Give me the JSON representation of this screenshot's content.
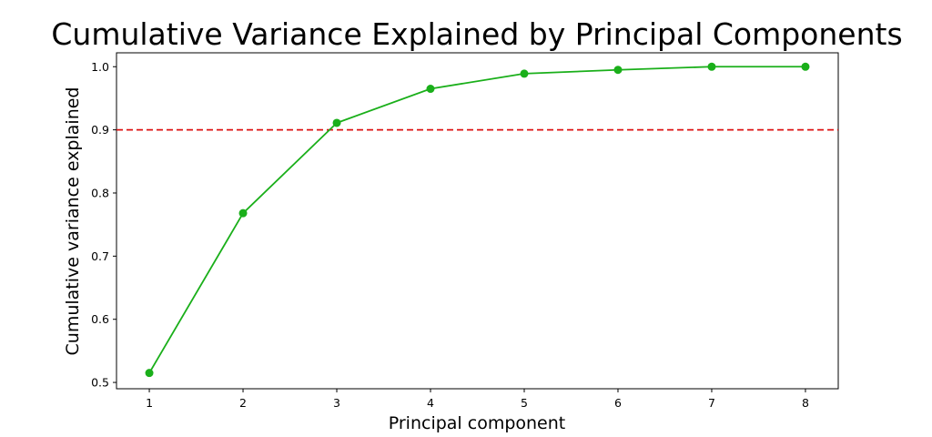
{
  "chart_data": {
    "type": "line",
    "title": "Cumulative Variance Explained by Principal Components",
    "xlabel": "Principal component",
    "ylabel": "Cumulative variance explained",
    "x": [
      1,
      2,
      3,
      4,
      5,
      6,
      7,
      8
    ],
    "x_ticks": [
      "1",
      "2",
      "3",
      "4",
      "5",
      "6",
      "7",
      "8"
    ],
    "y_ticks": [
      "0.5",
      "0.6",
      "0.7",
      "0.8",
      "0.9",
      "1.0"
    ],
    "xlim": [
      0.65,
      8.35
    ],
    "ylim": [
      0.49,
      1.022
    ],
    "series": [
      {
        "values": [
          0.515,
          0.768,
          0.911,
          0.965,
          0.989,
          0.995,
          1.0,
          1.0
        ],
        "color": "#1aaf1a",
        "marker": "circle"
      }
    ],
    "reference_lines": [
      {
        "y": 0.9,
        "color": "#dd1111",
        "style": "dashed"
      }
    ],
    "grid": false,
    "legend": "none"
  }
}
